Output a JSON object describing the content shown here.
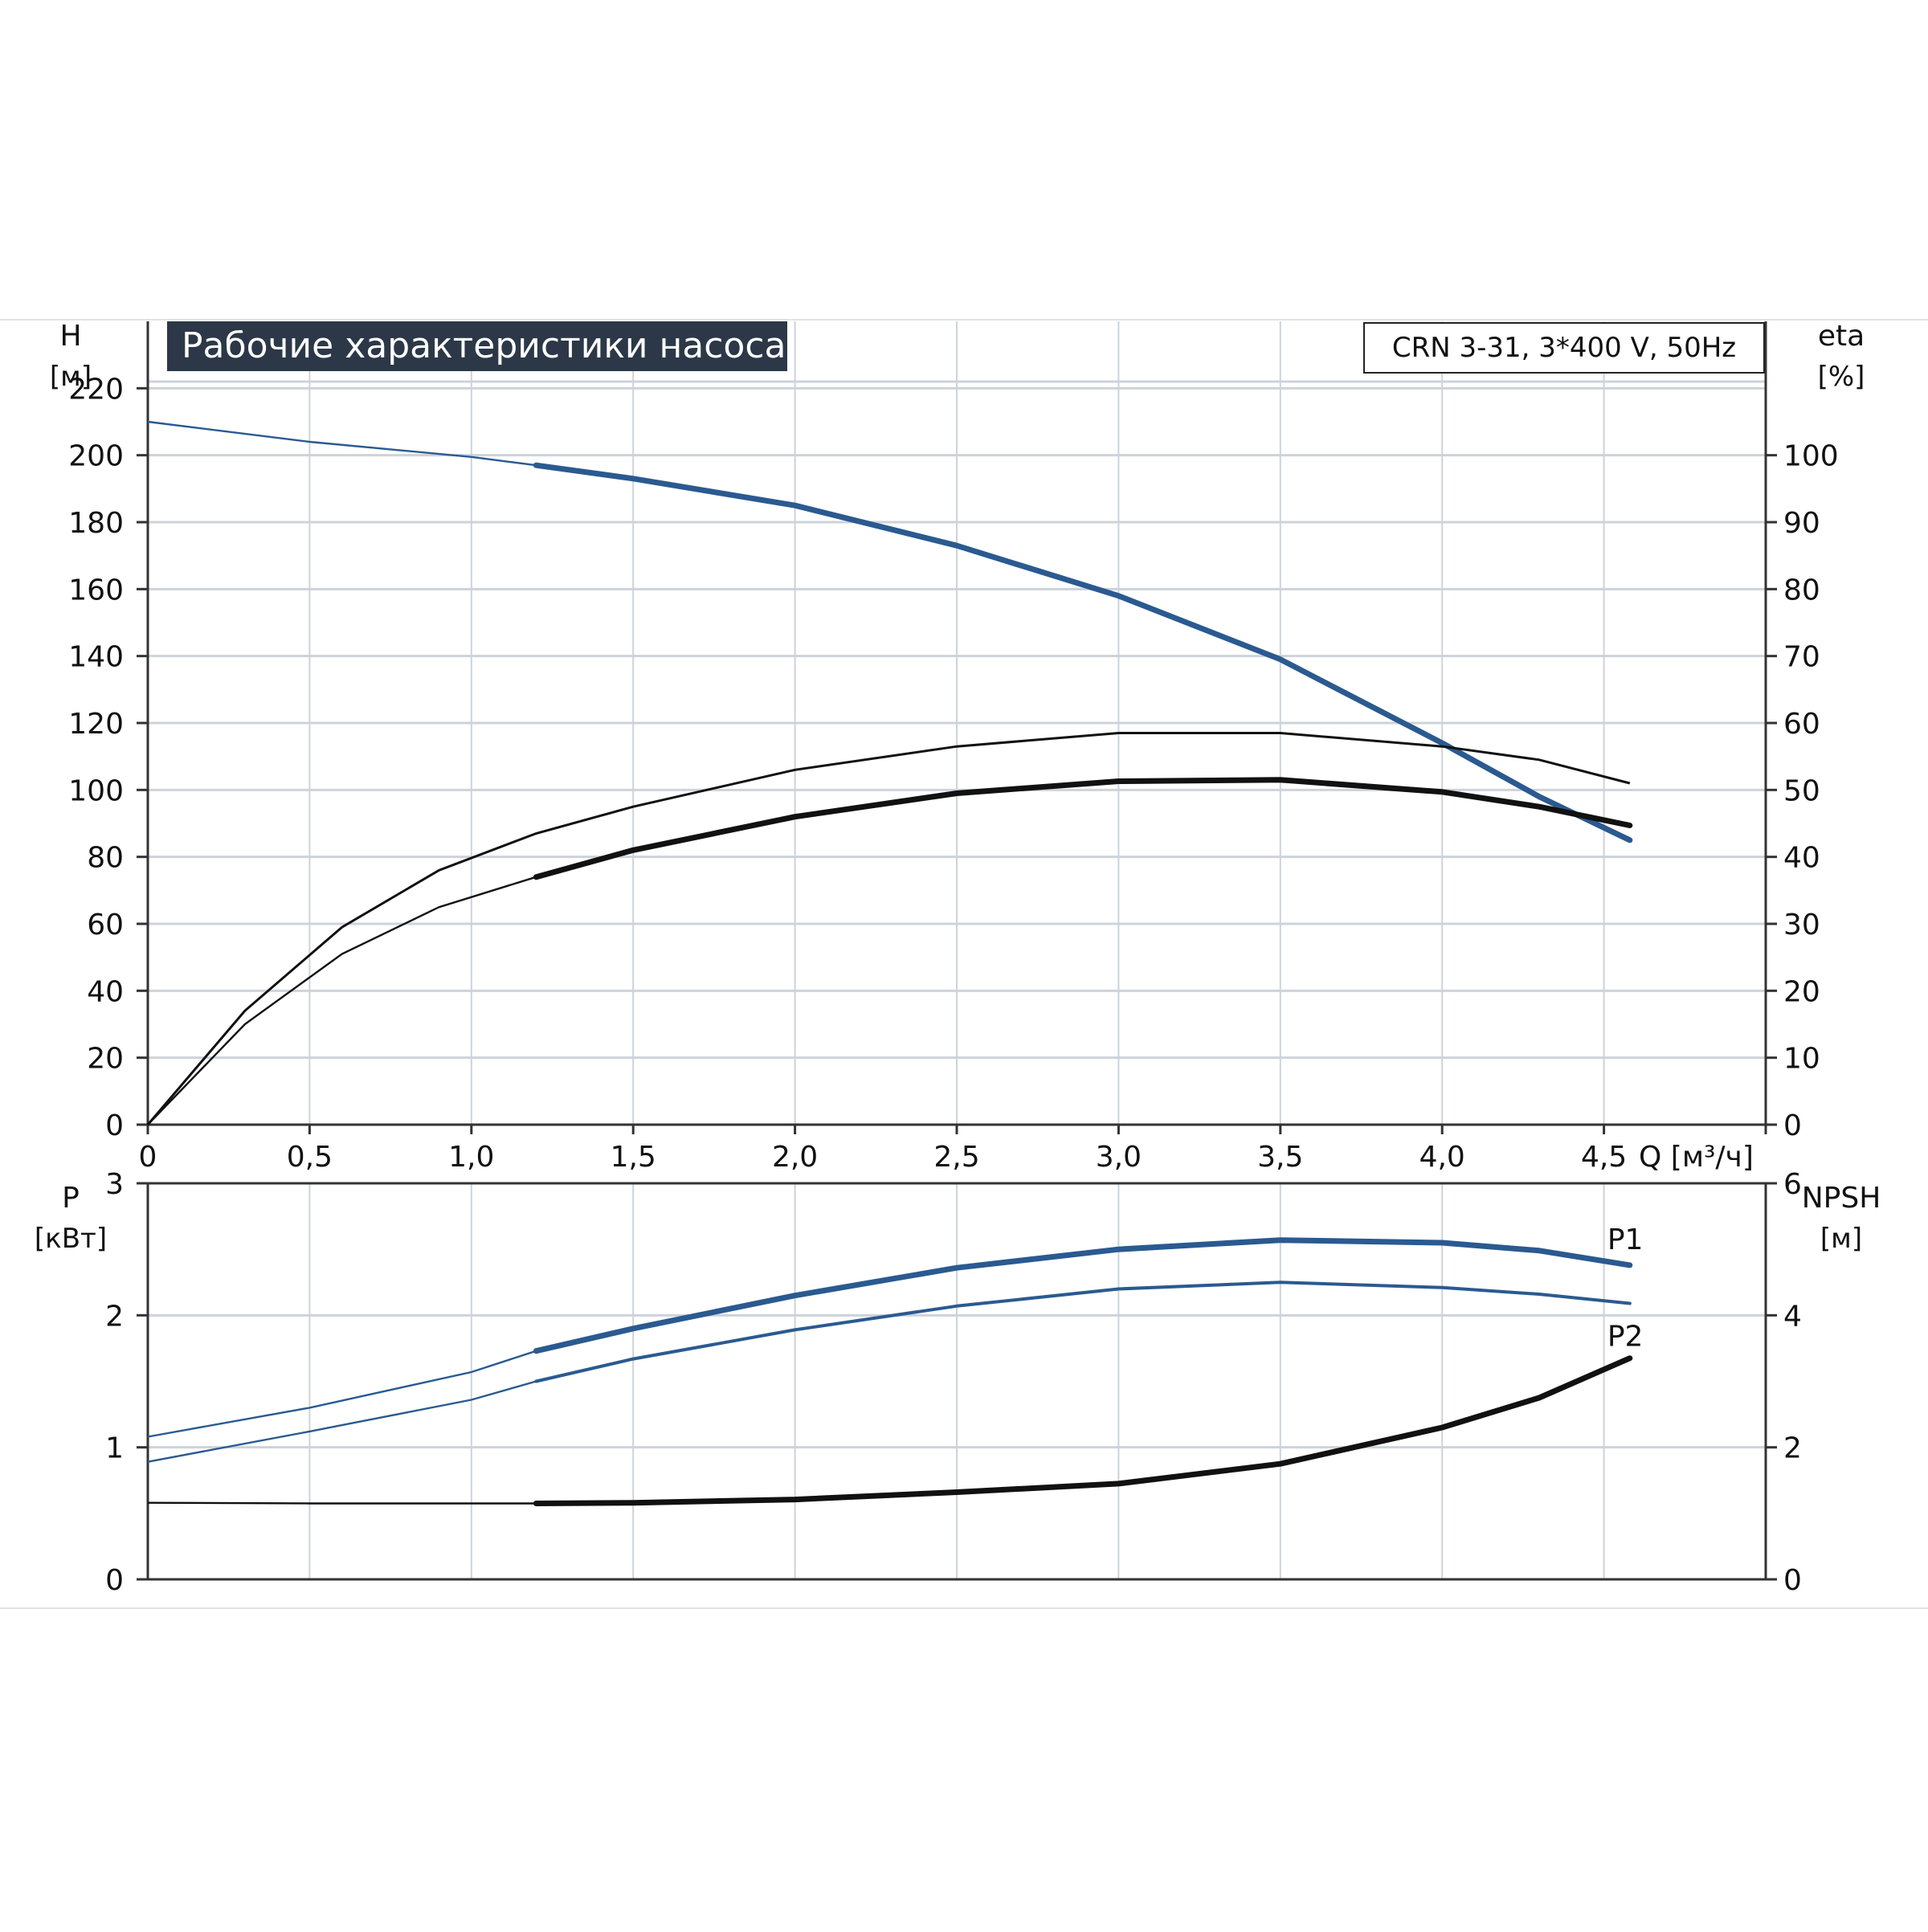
{
  "chart_data": [
    {
      "type": "line",
      "title": "Рабочие характеристики насоса",
      "subtitle": "CRN 3-31, 3*400 V, 50Hz",
      "xlabel": "Q [м³/ч]",
      "x_ticks": [
        "0",
        "0,5",
        "1,0",
        "1,5",
        "2,0",
        "2,5",
        "3,0",
        "3,5",
        "4,0",
        "4,5"
      ],
      "xlim": [
        0,
        5.0
      ],
      "ylabel_left": [
        "H",
        "[м]"
      ],
      "y_left_ticks": [
        "0",
        "20",
        "40",
        "60",
        "80",
        "100",
        "120",
        "140",
        "160",
        "180",
        "200",
        "220"
      ],
      "ylim_left": [
        0,
        240
      ],
      "ylabel_right": [
        "eta",
        "[%]"
      ],
      "y_right_ticks": [
        "0",
        "10",
        "20",
        "30",
        "40",
        "50",
        "60",
        "70",
        "80",
        "90",
        "100"
      ],
      "ylim_right": [
        0,
        120
      ],
      "grid": true,
      "series": [
        {
          "axis": "left",
          "color": "#2a5a90",
          "operating_from": 1.2,
          "x": [
            0,
            0.5,
            1.0,
            1.2,
            1.5,
            2.0,
            2.5,
            3.0,
            3.5,
            4.0,
            4.3,
            4.58
          ],
          "y": [
            210,
            204,
            199.5,
            197,
            193,
            185,
            173,
            158,
            139,
            114,
            98,
            85
          ]
        },
        {
          "axis": "right",
          "color": "#111111",
          "stroke": 1.2,
          "x": [
            0,
            0.3,
            0.6,
            0.9,
            1.2,
            1.5,
            2.0,
            2.5,
            3.0,
            3.5,
            4.0,
            4.3,
            4.58
          ],
          "y": [
            0,
            17,
            29.5,
            38,
            43.5,
            47.5,
            53,
            56.5,
            58.5,
            58.5,
            56.5,
            54.5,
            51
          ]
        },
        {
          "axis": "right",
          "color": "#111111",
          "operating_from": 1.2,
          "x": [
            0,
            0.3,
            0.6,
            0.9,
            1.2,
            1.5,
            2.0,
            2.5,
            3.0,
            3.5,
            4.0,
            4.3,
            4.58
          ],
          "y": [
            0,
            15,
            25.5,
            32.5,
            37,
            41,
            46,
            49.5,
            51.3,
            51.5,
            49.7,
            47.5,
            44.7
          ]
        }
      ]
    },
    {
      "type": "line",
      "xlim": [
        0,
        5.0
      ],
      "ylabel_left": [
        "P",
        "[кВт]"
      ],
      "y_left_ticks": [
        "0",
        "1",
        "2",
        "3"
      ],
      "ylim_left": [
        0,
        3
      ],
      "ylabel_right": [
        "NPSH",
        "[м]"
      ],
      "y_right_ticks": [
        "0",
        "2",
        "4",
        "6"
      ],
      "ylim_right": [
        0,
        6
      ],
      "grid": true,
      "series": [
        {
          "name": "P1",
          "axis": "left",
          "color": "#2a5a90",
          "operating_from": 1.2,
          "x": [
            0,
            0.5,
            1.0,
            1.2,
            1.5,
            2.0,
            2.5,
            3.0,
            3.5,
            4.0,
            4.3,
            4.58
          ],
          "y": [
            1.08,
            1.3,
            1.57,
            1.73,
            1.9,
            2.15,
            2.36,
            2.5,
            2.57,
            2.55,
            2.49,
            2.38
          ]
        },
        {
          "name": "P2",
          "axis": "left",
          "color": "#2a5a90",
          "operating_from": 1.2,
          "thin": true,
          "x": [
            0,
            0.5,
            1.0,
            1.2,
            1.5,
            2.0,
            2.5,
            3.0,
            3.5,
            4.0,
            4.3,
            4.58
          ],
          "y": [
            0.89,
            1.12,
            1.36,
            1.5,
            1.67,
            1.89,
            2.07,
            2.2,
            2.25,
            2.21,
            2.16,
            2.09
          ]
        },
        {
          "axis": "right",
          "color": "#111111",
          "operating_from": 1.2,
          "x": [
            0,
            0.5,
            1.0,
            1.2,
            1.5,
            2.0,
            2.5,
            3.0,
            3.5,
            4.0,
            4.3,
            4.58
          ],
          "y": [
            1.16,
            1.15,
            1.15,
            1.15,
            1.16,
            1.21,
            1.32,
            1.45,
            1.75,
            2.3,
            2.75,
            3.35
          ]
        }
      ]
    }
  ]
}
